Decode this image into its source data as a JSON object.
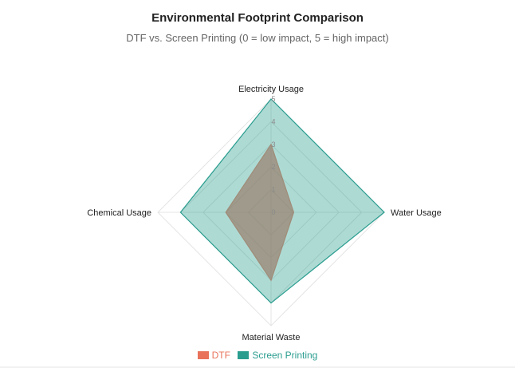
{
  "chart_data": {
    "type": "radar",
    "title": "Environmental Footprint Comparison",
    "subtitle": "DTF vs. Screen Printing (0 = low impact, 5 = high impact)",
    "categories": [
      "Electricity Usage",
      "Water Usage",
      "Material Waste",
      "Chemical Usage"
    ],
    "ticks": [
      "0",
      "1",
      "2",
      "3",
      "4",
      "5"
    ],
    "range": [
      0,
      5
    ],
    "grid": true,
    "legend_position": "bottom",
    "series": [
      {
        "name": "DTF",
        "values": [
          3,
          1,
          3,
          2
        ],
        "color": "#e8735a",
        "fill": "rgba(150,120,100,0.65)",
        "stroke": "#a08c78"
      },
      {
        "name": "Screen Printing",
        "values": [
          5,
          5,
          4,
          4
        ],
        "color": "#2a9d8f",
        "fill": "rgba(42,157,143,0.38)",
        "stroke": "#2a9d8f"
      }
    ]
  }
}
